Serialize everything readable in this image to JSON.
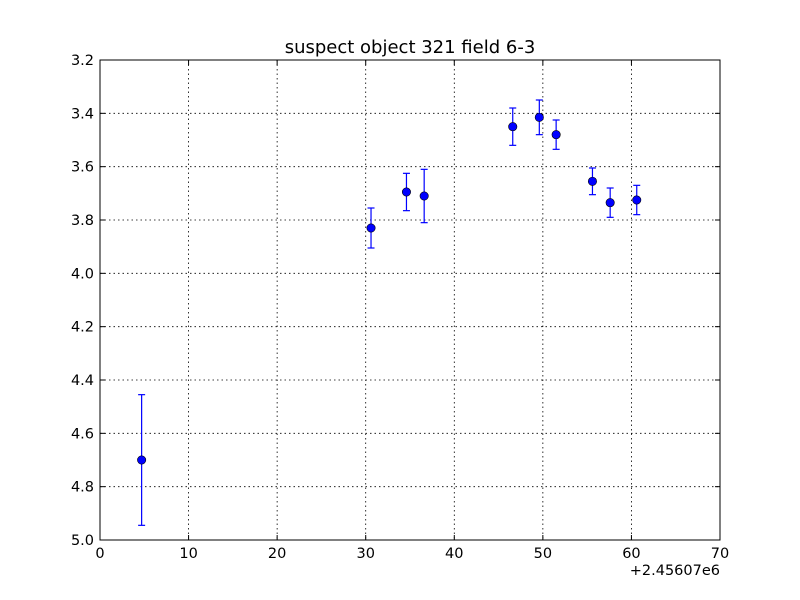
{
  "chart_data": {
    "type": "scatter",
    "title": "suspect object 321 field 6-3",
    "xlabel": "",
    "ylabel": "",
    "x_offset_label": "+2.45607e6",
    "xlim": [
      0,
      70
    ],
    "ylim": [
      5.0,
      3.2
    ],
    "y_inverted": true,
    "x_ticks": [
      0,
      10,
      20,
      30,
      40,
      50,
      60,
      70
    ],
    "x_tick_labels": [
      "0",
      "10",
      "20",
      "30",
      "40",
      "50",
      "60",
      "70"
    ],
    "y_ticks": [
      3.2,
      3.4,
      3.6,
      3.8,
      4.0,
      4.2,
      4.4,
      4.6,
      4.8,
      5.0
    ],
    "y_tick_labels": [
      "3.2",
      "3.4",
      "3.6",
      "3.8",
      "4.0",
      "4.2",
      "4.4",
      "4.6",
      "4.8",
      "5.0"
    ],
    "grid": true,
    "marker_color": "#0000ff",
    "points": [
      {
        "x": 4.7,
        "y": 4.7,
        "err": 0.245
      },
      {
        "x": 30.6,
        "y": 3.83,
        "err": 0.075
      },
      {
        "x": 34.6,
        "y": 3.695,
        "err": 0.07
      },
      {
        "x": 36.6,
        "y": 3.71,
        "err": 0.1
      },
      {
        "x": 46.6,
        "y": 3.45,
        "err": 0.07
      },
      {
        "x": 49.6,
        "y": 3.415,
        "err": 0.065
      },
      {
        "x": 51.5,
        "y": 3.48,
        "err": 0.055
      },
      {
        "x": 55.6,
        "y": 3.655,
        "err": 0.05
      },
      {
        "x": 57.6,
        "y": 3.735,
        "err": 0.055
      },
      {
        "x": 60.6,
        "y": 3.725,
        "err": 0.055
      }
    ]
  }
}
